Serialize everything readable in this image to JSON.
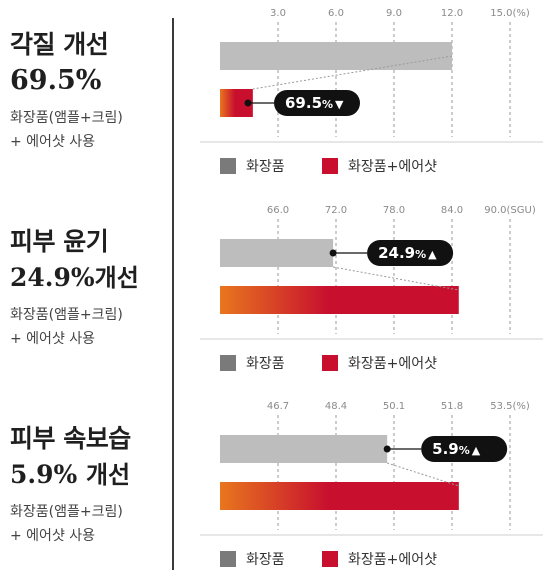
{
  "colors": {
    "cosmetic": "#bdbdbd",
    "legend_cosmetic": "#7a7a7a",
    "aircut": "#c8102e",
    "aircut_start": "#e8761e",
    "callout": "#111111",
    "divider": "#3a3a3a"
  },
  "panels": [
    {
      "title_line1": "각질 개선",
      "title_line2": "69.5%",
      "subtitle_line1": "화장품(앰플+크림)",
      "subtitle_line2": "+ 에어샷 사용",
      "callout": {
        "value": "69.5",
        "unit": "%",
        "arrow": "▼",
        "direction": "down"
      },
      "legend": [
        "화장품",
        "화장품+에어샷"
      ]
    },
    {
      "title_line1": "피부 윤기",
      "title_line2_num": "24.9%",
      "title_line2_word": "개선",
      "subtitle_line1": "화장품(앰플+크림)",
      "subtitle_line2": "+ 에어샷 사용",
      "callout": {
        "value": "24.9",
        "unit": "%",
        "arrow": "▲",
        "direction": "up"
      },
      "legend": [
        "화장품",
        "화장품+에어샷"
      ]
    },
    {
      "title_line1": "피부 속보습",
      "title_line2_num": "5.9%",
      "title_line2_word": "개선",
      "subtitle_line1": "화장품(앰플+크림)",
      "subtitle_line2": "+ 에어샷 사용",
      "callout": {
        "value": "5.9",
        "unit": "%",
        "arrow": "▲",
        "direction": "up"
      },
      "legend": [
        "화장품",
        "화장품+에어샷"
      ]
    }
  ],
  "chart_data": [
    {
      "type": "bar",
      "orientation": "horizontal",
      "ticks": [
        "3.0",
        "6.0",
        "9.0",
        "12.0",
        "15.0(%)"
      ],
      "tick_values": [
        3,
        6,
        9,
        12,
        15
      ],
      "xlim": [
        0,
        15
      ],
      "series": [
        {
          "name": "화장품",
          "value": 12.0
        },
        {
          "name": "화장품+에어샷",
          "value": 1.7
        }
      ],
      "grid": true
    },
    {
      "type": "bar",
      "orientation": "horizontal",
      "ticks": [
        "66.0",
        "72.0",
        "78.0",
        "84.0",
        "90.0(SGU)"
      ],
      "tick_values": [
        66,
        72,
        78,
        84,
        90
      ],
      "xlim": [
        60,
        90
      ],
      "series": [
        {
          "name": "화장품",
          "value": 71.7
        },
        {
          "name": "화장품+에어샷",
          "value": 84.7
        }
      ],
      "grid": true
    },
    {
      "type": "bar",
      "orientation": "horizontal",
      "ticks": [
        "46.7",
        "48.4",
        "50.1",
        "51.8",
        "53.5(%)"
      ],
      "tick_values": [
        46.7,
        48.4,
        50.1,
        51.8,
        53.5
      ],
      "xlim": [
        45.0,
        53.5
      ],
      "series": [
        {
          "name": "화장품",
          "value": 49.9
        },
        {
          "name": "화장품+에어샷",
          "value": 52.0
        }
      ],
      "grid": true
    }
  ]
}
